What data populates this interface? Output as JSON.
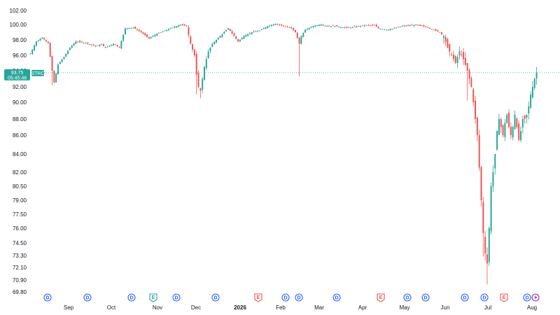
{
  "chart_data": {
    "type": "candlestick",
    "title": "",
    "xlabel": "",
    "ylabel": "",
    "symbol": "STRC",
    "last_price": "93.75",
    "countdown": "05:45:46",
    "ylim": [
      69.5,
      102.5
    ],
    "grid": false,
    "y_ticks": [
      "102.00",
      "100.00",
      "98.00",
      "96.00",
      "94.00",
      "92.00",
      "90.00",
      "88.00",
      "86.00",
      "84.00",
      "82.00",
      "80.50",
      "79.00",
      "77.50",
      "76.00",
      "74.50",
      "73.30",
      "72.10",
      "70.90",
      "69.80"
    ],
    "x_ticks": [
      {
        "label": "Sep",
        "bold": false
      },
      {
        "label": "Oct",
        "bold": false
      },
      {
        "label": "Nov",
        "bold": false
      },
      {
        "label": "Dec",
        "bold": false
      },
      {
        "label": "2026",
        "bold": true
      },
      {
        "label": "Feb",
        "bold": false
      },
      {
        "label": "Mar",
        "bold": false
      },
      {
        "label": "Apr",
        "bold": false
      },
      {
        "label": "May",
        "bold": false
      },
      {
        "label": "Jun",
        "bold": false
      },
      {
        "label": "Jul",
        "bold": false
      },
      {
        "label": "Aug",
        "bold": false
      }
    ],
    "event_markers": [
      {
        "type": "D"
      },
      {
        "type": "D"
      },
      {
        "type": "D"
      },
      {
        "type": "E"
      },
      {
        "type": "D"
      },
      {
        "type": "D"
      },
      {
        "type": "E"
      },
      {
        "type": "D"
      },
      {
        "type": "D"
      },
      {
        "type": "D"
      },
      {
        "type": "E"
      },
      {
        "type": "D"
      },
      {
        "type": "D"
      },
      {
        "type": "D"
      },
      {
        "type": "D"
      },
      {
        "type": "E"
      },
      {
        "type": "D"
      }
    ],
    "up_color": "#26a69a",
    "down_color": "#ef5350",
    "keypoints": [
      [
        0,
        96.2
      ],
      [
        3,
        97.8
      ],
      [
        6,
        98.3
      ],
      [
        9,
        97.6
      ],
      [
        11,
        94.0
      ],
      [
        12,
        92.5
      ],
      [
        14,
        94.8
      ],
      [
        17,
        95.8
      ],
      [
        20,
        97.0
      ],
      [
        23,
        97.8
      ],
      [
        28,
        97.6
      ],
      [
        33,
        97.2
      ],
      [
        36,
        97.4
      ],
      [
        38,
        97.0
      ],
      [
        42,
        97.5
      ],
      [
        45,
        97.0
      ],
      [
        48,
        99.5
      ],
      [
        52,
        99.6
      ],
      [
        56,
        99.0
      ],
      [
        60,
        98.2
      ],
      [
        64,
        98.8
      ],
      [
        68,
        99.2
      ],
      [
        72,
        99.6
      ],
      [
        76,
        100.0
      ],
      [
        79,
        99.8
      ],
      [
        81,
        97.5
      ],
      [
        83,
        96.0
      ],
      [
        84,
        93.5
      ],
      [
        85,
        92.0
      ],
      [
        86,
        91.5
      ],
      [
        88,
        94.5
      ],
      [
        90,
        96.5
      ],
      [
        92,
        97.5
      ],
      [
        96,
        98.5
      ],
      [
        100,
        99.5
      ],
      [
        103,
        98.5
      ],
      [
        105,
        97.8
      ],
      [
        108,
        98.5
      ],
      [
        112,
        99.0
      ],
      [
        116,
        99.2
      ],
      [
        120,
        99.8
      ],
      [
        124,
        100.1
      ],
      [
        128,
        99.8
      ],
      [
        132,
        99.5
      ],
      [
        134,
        99.0
      ],
      [
        136,
        97.5
      ],
      [
        137,
        98.5
      ],
      [
        139,
        99.3
      ],
      [
        143,
        99.8
      ],
      [
        147,
        100.0
      ],
      [
        150,
        99.8
      ],
      [
        154,
        99.8
      ],
      [
        158,
        99.6
      ],
      [
        162,
        99.6
      ],
      [
        166,
        99.8
      ],
      [
        170,
        99.9
      ],
      [
        174,
        99.9
      ],
      [
        176,
        99.5
      ],
      [
        180,
        99.3
      ],
      [
        184,
        99.5
      ],
      [
        188,
        99.8
      ],
      [
        192,
        99.9
      ],
      [
        196,
        99.9
      ],
      [
        200,
        99.7
      ],
      [
        204,
        99.3
      ],
      [
        207,
        99.0
      ],
      [
        209,
        98.5
      ],
      [
        211,
        97.0
      ],
      [
        213,
        96.0
      ],
      [
        215,
        95.0
      ],
      [
        217,
        96.5
      ],
      [
        219,
        95.5
      ],
      [
        221,
        94.0
      ],
      [
        223,
        92.0
      ],
      [
        224,
        90.0
      ],
      [
        225,
        88.0
      ],
      [
        226,
        86.0
      ],
      [
        227,
        82.5
      ],
      [
        228,
        79.0
      ],
      [
        229,
        75.5
      ],
      [
        230,
        73.5
      ],
      [
        231,
        72.5
      ],
      [
        232,
        76.0
      ],
      [
        233,
        80.5
      ],
      [
        234,
        82.0
      ],
      [
        235,
        84.0
      ],
      [
        236,
        86.5
      ],
      [
        237,
        88.0
      ],
      [
        238,
        87.0
      ],
      [
        239,
        86.0
      ],
      [
        240,
        87.5
      ],
      [
        241,
        88.5
      ],
      [
        242,
        87.0
      ],
      [
        243,
        86.0
      ],
      [
        244,
        87.0
      ],
      [
        245,
        88.5
      ],
      [
        246,
        87.0
      ],
      [
        247,
        85.5
      ],
      [
        248,
        86.5
      ],
      [
        249,
        88.0
      ],
      [
        250,
        88.0
      ],
      [
        251,
        88.5
      ],
      [
        252,
        89.5
      ],
      [
        253,
        91.0
      ],
      [
        254,
        92.0
      ],
      [
        255,
        93.0
      ],
      [
        256,
        93.75
      ]
    ],
    "spikes": [
      {
        "i": 11,
        "low": 92.2
      },
      {
        "i": 84,
        "low": 91.0
      },
      {
        "i": 86,
        "low": 90.5
      },
      {
        "i": 136,
        "low": 93.3
      },
      {
        "i": 221,
        "low": 90.2
      },
      {
        "i": 231,
        "low": 70.5
      },
      {
        "i": 229,
        "low": 73.2
      }
    ]
  }
}
